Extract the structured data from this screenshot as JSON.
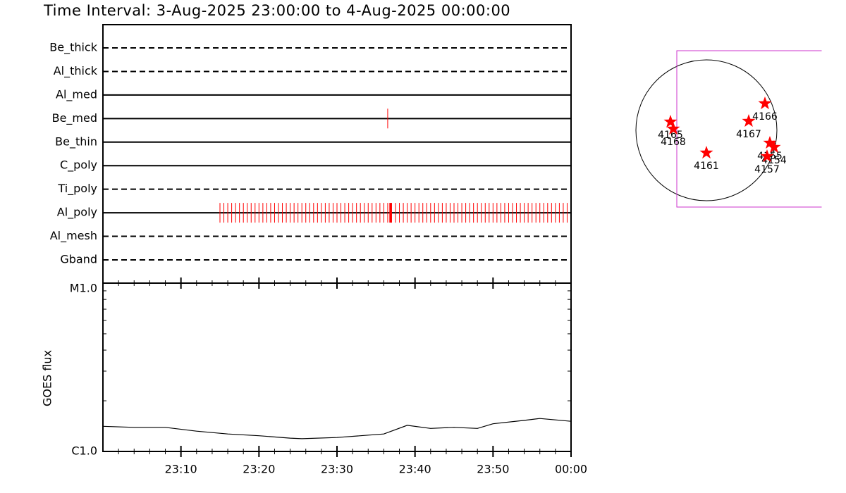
{
  "chart_data": [
    {
      "type": "timeline",
      "title": "Time Interval:  3-Aug-2025 23:00:00 to  4-Aug-2025 00:00:00",
      "xlim": [
        0,
        60
      ],
      "filters": [
        {
          "name": "Be_thick",
          "style": "dashed",
          "exposures": []
        },
        {
          "name": "Al_thick",
          "style": "dashed",
          "exposures": []
        },
        {
          "name": "Al_med",
          "style": "solid",
          "exposures": []
        },
        {
          "name": "Be_med",
          "style": "solid",
          "exposures": [
            36.5
          ]
        },
        {
          "name": "Be_thin",
          "style": "solid",
          "exposures": []
        },
        {
          "name": "C_poly",
          "style": "solid",
          "exposures": []
        },
        {
          "name": "Ti_poly",
          "style": "dashed",
          "exposures": []
        },
        {
          "name": "Al_poly",
          "style": "solid",
          "exposures": [
            15,
            15.5,
            16,
            16.5,
            17,
            17.5,
            18,
            18.5,
            19,
            19.5,
            20,
            20.5,
            21,
            21.5,
            22,
            22.5,
            23,
            23.5,
            24,
            24.5,
            25,
            25.5,
            26,
            26.5,
            27,
            27.5,
            28,
            28.5,
            29,
            29.5,
            30,
            30.5,
            31,
            31.5,
            32,
            32.5,
            33,
            33.5,
            34,
            34.5,
            35,
            35.5,
            36,
            36.5,
            37,
            37.5,
            38,
            38.5,
            39,
            39.5,
            40,
            40.5,
            41,
            41.5,
            42,
            42.5,
            43,
            43.5,
            44,
            44.5,
            45,
            45.5,
            46,
            46.5,
            47,
            47.5,
            48,
            48.5,
            49,
            49.5,
            50,
            50.5,
            51,
            51.5,
            52,
            52.5,
            53,
            53.5,
            54,
            54.5,
            55,
            55.5,
            56,
            56.5,
            57,
            57.5,
            58,
            58.5,
            59,
            59.5
          ],
          "long_exposures": [
            36.85
          ]
        },
        {
          "name": "Al_mesh",
          "style": "dashed",
          "exposures": []
        },
        {
          "name": "Gband",
          "style": "dashed",
          "exposures": []
        }
      ],
      "color": "#ff0000"
    },
    {
      "type": "line",
      "ylabel": "GOES flux",
      "log": true,
      "xlim": [
        0,
        60
      ],
      "xticks": [
        {
          "value": 10,
          "label": "23:10"
        },
        {
          "value": 20,
          "label": "23:20"
        },
        {
          "value": 30,
          "label": "23:30"
        },
        {
          "value": 40,
          "label": "23:40"
        },
        {
          "value": 50,
          "label": "23:50"
        },
        {
          "value": 60,
          "label": "00:00"
        }
      ],
      "xminorticks": [
        2,
        4,
        6,
        8,
        12,
        14,
        16,
        18,
        22,
        24,
        26,
        28,
        32,
        34,
        36,
        38,
        42,
        44,
        46,
        48,
        52,
        54,
        56,
        58
      ],
      "ylim": [
        1e-06,
        1e-05
      ],
      "yticks": [
        {
          "value": 1e-06,
          "label": "C1.0"
        },
        {
          "value": 1e-05,
          "label": "M1.0"
        }
      ],
      "yminorticks": [
        2e-06,
        3e-06,
        4e-06,
        5e-06,
        6e-06,
        7e-06,
        8e-06,
        9e-06
      ],
      "x": [
        0,
        4,
        8,
        12,
        16,
        20,
        24,
        25.5,
        30,
        36,
        39,
        42,
        45,
        48,
        50,
        54,
        56,
        58,
        60
      ],
      "values": [
        1.41e-06,
        1.39e-06,
        1.39e-06,
        1.32e-06,
        1.27e-06,
        1.24e-06,
        1.2e-06,
        1.19e-06,
        1.21e-06,
        1.27e-06,
        1.43e-06,
        1.37e-06,
        1.39e-06,
        1.37e-06,
        1.46e-06,
        1.53e-06,
        1.57e-06,
        1.54e-06,
        1.51e-06
      ],
      "color": "#000000"
    },
    {
      "type": "map",
      "fov": {
        "x": [
          -0.42,
          2.0
        ],
        "y": [
          -1.09,
          1.13
        ],
        "color": "#cc33cc"
      },
      "marker_color": "#ff0000",
      "regions": [
        {
          "label": "4165",
          "x": -0.51,
          "y": 0.12
        },
        {
          "label": "4168",
          "x": -0.47,
          "y": 0.02
        },
        {
          "label": "4161",
          "x": 0.0,
          "y": -0.32
        },
        {
          "label": "4167",
          "x": 0.6,
          "y": 0.13
        },
        {
          "label": "4166",
          "x": 0.83,
          "y": 0.38
        },
        {
          "label": "4155",
          "x": 0.9,
          "y": -0.18
        },
        {
          "label": "4154",
          "x": 0.96,
          "y": -0.24
        },
        {
          "label": "4157",
          "x": 0.86,
          "y": -0.37
        }
      ]
    }
  ]
}
